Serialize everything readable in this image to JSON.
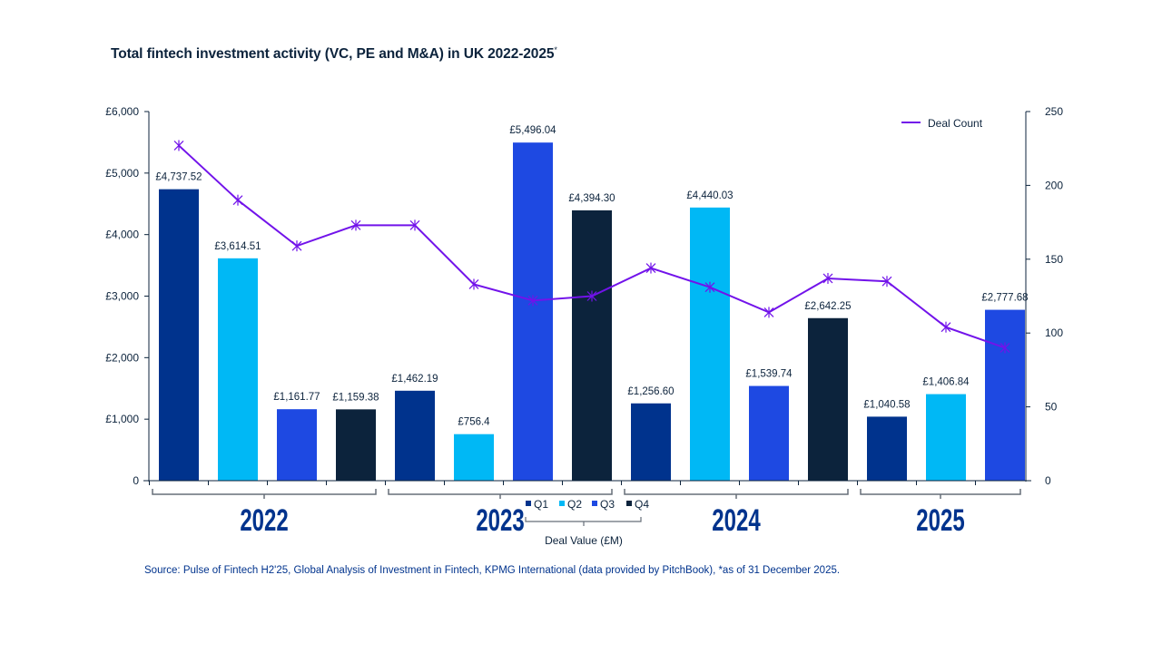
{
  "title": "Total fintech investment activity (VC, PE and M&A) in UK 2022-2025",
  "title_suffix": "*",
  "source": "Source: Pulse of Fintech H2'25, Global Analysis of Investment in Fintech, KPMG International (data provided by PitchBook), *as of 31 December 2025.",
  "chart_data": {
    "type": "bar",
    "title": "Total fintech investment activity (VC, PE and M&A) in UK 2022-2025*",
    "xlabel": "Deal Value (£M)",
    "ylabel": "",
    "ylim": [
      0,
      6000
    ],
    "y_ticks": [
      "0",
      "£1,000",
      "£2,000",
      "£3,000",
      "£4,000",
      "£5,000",
      "£6,000"
    ],
    "y_tick_values": [
      0,
      1000,
      2000,
      3000,
      4000,
      5000,
      6000
    ],
    "y2lim": [
      0,
      250
    ],
    "y2_ticks": [
      "0",
      "50",
      "100",
      "150",
      "200",
      "250"
    ],
    "y2_tick_values": [
      0,
      50,
      100,
      150,
      200,
      250
    ],
    "grid": false,
    "years": [
      "2022",
      "2023",
      "2024",
      "2025"
    ],
    "categories": [
      "2022 Q1",
      "2022 Q2",
      "2022 Q3",
      "2022 Q4",
      "2023 Q1",
      "2023 Q2",
      "2023 Q3",
      "2023 Q4",
      "2024 Q1",
      "2024 Q2",
      "2024 Q3",
      "2024 Q4",
      "2025 Q1",
      "2025 Q2",
      "2025 Q3"
    ],
    "quarters": [
      "Q1",
      "Q2",
      "Q3",
      "Q4",
      "Q1",
      "Q2",
      "Q3",
      "Q4",
      "Q1",
      "Q2",
      "Q3",
      "Q4",
      "Q1",
      "Q2",
      "Q3"
    ],
    "series": [
      {
        "name": "Deal Value (£M)",
        "type": "bar",
        "values": [
          4737.52,
          3614.51,
          1161.77,
          1159.38,
          1462.19,
          756.4,
          5496.04,
          4394.3,
          1256.6,
          4440.03,
          1539.74,
          2642.25,
          1040.58,
          1406.84,
          2777.68
        ],
        "labels": [
          "£4,737.52",
          "£3,614.51",
          "£1,161.77",
          "£1,159.38",
          "£1,462.19",
          "£756.4",
          "£5,496.04",
          "£4,394.30",
          "£1,256.60",
          "£4,440.03",
          "£1,539.74",
          "£2,642.25",
          "£1,040.58",
          "£1,406.84",
          "£2,777.68"
        ],
        "axis": "left"
      },
      {
        "name": "Deal Count",
        "type": "line",
        "values": [
          227,
          190,
          159,
          173,
          173,
          133,
          122,
          125,
          144,
          131,
          114,
          137,
          135,
          104,
          90
        ],
        "axis": "right"
      }
    ],
    "legend": {
      "line": {
        "label": "Deal Count",
        "position": "top-right"
      },
      "quarters": [
        {
          "label": "Q1",
          "color": "#00338d"
        },
        {
          "label": "Q2",
          "color": "#00b8f5"
        },
        {
          "label": "Q3",
          "color": "#1e49e2"
        },
        {
          "label": "Q4",
          "color": "#0c233c"
        }
      ],
      "quarters_position": "bottom-center"
    },
    "colors": {
      "Q1": "#00338d",
      "Q2": "#00b8f5",
      "Q3": "#1e49e2",
      "Q4": "#0c233c",
      "line": "#7213ea",
      "axis": "#0c233c",
      "year_label": "#00338d"
    }
  }
}
